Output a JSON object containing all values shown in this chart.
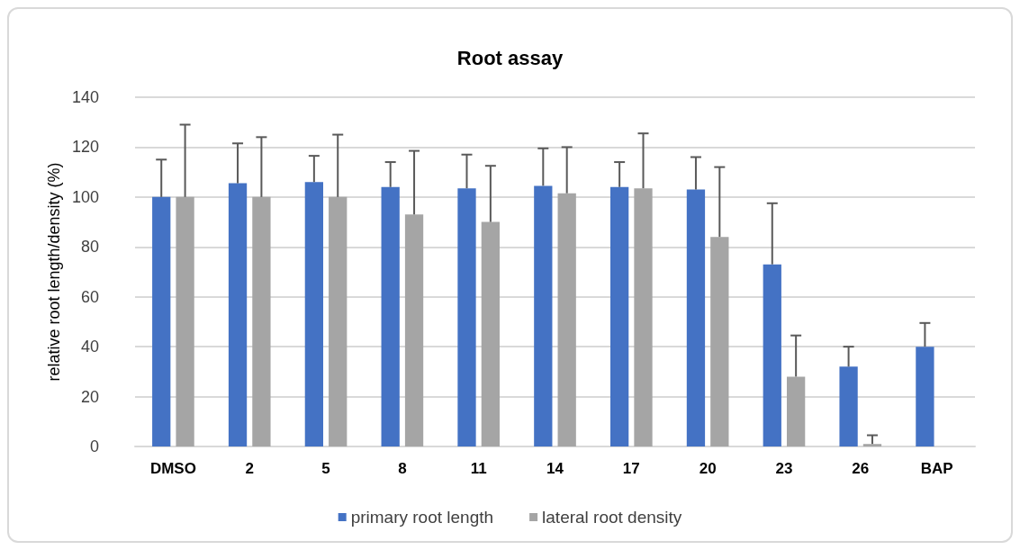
{
  "chart_data": {
    "type": "bar",
    "title": "Root assay",
    "ylabel": "relative root length/density (%)",
    "categories": [
      "DMSO",
      "2",
      "5",
      "8",
      "11",
      "14",
      "17",
      "20",
      "23",
      "26",
      "BAP"
    ],
    "series": [
      {
        "name": "primary root length",
        "color": "#4472c4",
        "values": [
          100,
          105.5,
          106,
          104,
          103.5,
          104.5,
          104,
          103,
          73,
          32,
          40
        ],
        "errors": [
          [
            100,
            115
          ],
          [
            105.5,
            121.5
          ],
          [
            106,
            116.5
          ],
          [
            104,
            114
          ],
          [
            103.5,
            117
          ],
          [
            104.5,
            119.5
          ],
          [
            104,
            114
          ],
          [
            103,
            116
          ],
          [
            73,
            97.5
          ],
          [
            32,
            40
          ],
          [
            40,
            49.5
          ]
        ]
      },
      {
        "name": "lateral root density",
        "color": "#a5a5a5",
        "values": [
          100,
          100,
          100,
          93,
          90,
          101.5,
          103.5,
          84,
          28,
          1,
          null
        ],
        "errors": [
          [
            100,
            129
          ],
          [
            100,
            124
          ],
          [
            100,
            125
          ],
          [
            93,
            118.5
          ],
          [
            90,
            112.5
          ],
          [
            101.5,
            120
          ],
          [
            103.5,
            125.5
          ],
          [
            84,
            112
          ],
          [
            28,
            44.5
          ],
          [
            1,
            4.5
          ],
          null
        ]
      }
    ],
    "ylim": [
      0,
      140
    ],
    "yticks": [
      0,
      20,
      40,
      60,
      80,
      100,
      120,
      140
    ],
    "grid": "y",
    "legend": "bottom"
  }
}
